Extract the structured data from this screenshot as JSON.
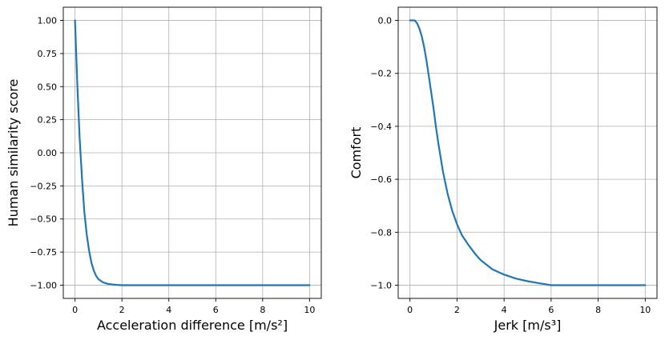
{
  "chart_data": [
    {
      "type": "line",
      "xlabel": "Acceleration difference [m/s²]",
      "ylabel": "Human similarity score",
      "xlim": [
        -0.5,
        10.5
      ],
      "ylim": [
        -1.1,
        1.1
      ],
      "xticks": [
        0,
        2,
        4,
        6,
        8,
        10
      ],
      "xtick_labels": [
        "0",
        "2",
        "4",
        "6",
        "8",
        "10"
      ],
      "yticks": [
        1.0,
        0.75,
        0.5,
        0.25,
        0.0,
        -0.25,
        -0.5,
        -0.75,
        -1.0
      ],
      "ytick_labels": [
        "1.00",
        "0.75",
        "0.50",
        "0.25",
        "0.00",
        "−0.25",
        "−0.50",
        "−0.75",
        "−1.00"
      ],
      "grid": true,
      "color": "#1f77b4",
      "series": [
        {
          "x": [
            0,
            0.1,
            0.2,
            0.3,
            0.4,
            0.5,
            0.6,
            0.7,
            0.8,
            0.9,
            1.0,
            1.2,
            1.4,
            1.6,
            1.8,
            2.0,
            2.5,
            3,
            4,
            5,
            6,
            7,
            8,
            9,
            10
          ],
          "y": [
            1.0,
            0.5,
            0.1,
            -0.2,
            -0.45,
            -0.62,
            -0.74,
            -0.83,
            -0.89,
            -0.93,
            -0.955,
            -0.98,
            -0.99,
            -0.995,
            -0.998,
            -1.0,
            -1.0,
            -1.0,
            -1.0,
            -1.0,
            -1.0,
            -1.0,
            -1.0,
            -1.0,
            -1.0
          ]
        }
      ]
    },
    {
      "type": "line",
      "xlabel": "Jerk [m/s³]",
      "ylabel": "Comfort",
      "xlim": [
        -0.5,
        10.5
      ],
      "ylim": [
        -1.05,
        0.05
      ],
      "xticks": [
        0,
        2,
        4,
        6,
        8,
        10
      ],
      "xtick_labels": [
        "0",
        "2",
        "4",
        "6",
        "8",
        "10"
      ],
      "yticks": [
        0.0,
        -0.2,
        -0.4,
        -0.6,
        -0.8,
        -1.0
      ],
      "ytick_labels": [
        "0.0",
        "−0.2",
        "−0.4",
        "−0.6",
        "−0.8",
        "−1.0"
      ],
      "grid": true,
      "color": "#1f77b4",
      "series": [
        {
          "x": [
            0,
            0.2,
            0.3,
            0.4,
            0.5,
            0.6,
            0.7,
            0.8,
            0.9,
            1.0,
            1.1,
            1.2,
            1.4,
            1.6,
            1.8,
            2.0,
            2.2,
            2.5,
            2.8,
            3.0,
            3.5,
            4.0,
            4.5,
            5.0,
            5.5,
            6.0,
            7.0,
            8.0,
            9.0,
            10.0
          ],
          "y": [
            0.0,
            0.0,
            -0.01,
            -0.03,
            -0.06,
            -0.1,
            -0.15,
            -0.21,
            -0.27,
            -0.33,
            -0.4,
            -0.46,
            -0.57,
            -0.655,
            -0.72,
            -0.77,
            -0.81,
            -0.85,
            -0.885,
            -0.905,
            -0.94,
            -0.96,
            -0.975,
            -0.985,
            -0.993,
            -1.0,
            -1.0,
            -1.0,
            -1.0,
            -1.0
          ]
        }
      ]
    }
  ]
}
